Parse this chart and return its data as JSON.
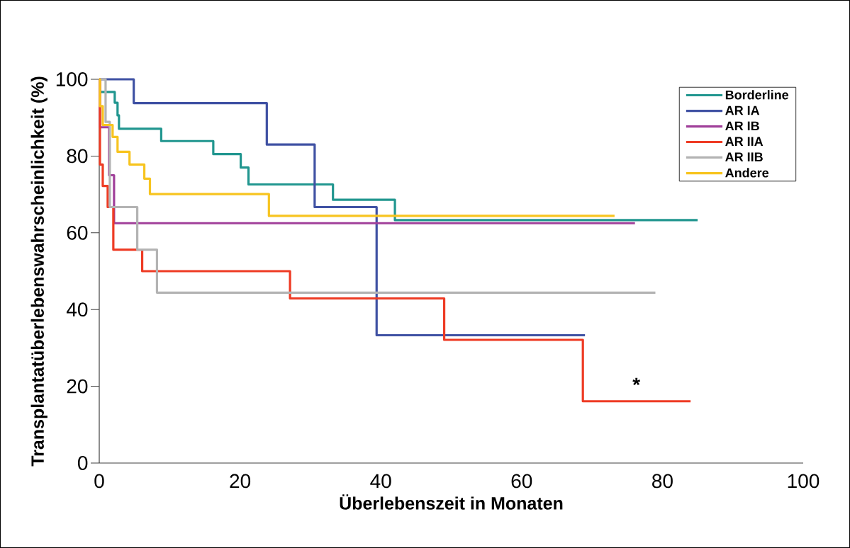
{
  "chart_data": {
    "type": "step",
    "xlabel": "Überlebenszeit in Monaten",
    "ylabel": "Transplantatüberlebenswahrscheinlichkeit (%)",
    "xlim": [
      0,
      100
    ],
    "ylim": [
      0,
      100
    ],
    "xticks": [
      0,
      20,
      40,
      60,
      80,
      100
    ],
    "yticks": [
      0,
      20,
      40,
      60,
      80,
      100
    ],
    "legend": "top right",
    "grid": false,
    "line_style": "solid",
    "marker": "none",
    "annotations": [
      "*"
    ],
    "series": [
      {
        "name": "Borderline",
        "color": "#21968f",
        "x": [
          0,
          0.1,
          2.2,
          2.6,
          2.8,
          8.8,
          16.2,
          20.1,
          21.2,
          33.2,
          42.0,
          85.0
        ],
        "values": [
          100,
          96.7,
          93.9,
          90.6,
          87.1,
          83.9,
          80.5,
          77.0,
          72.6,
          68.6,
          63.3,
          63.3
        ]
      },
      {
        "name": "AR IA",
        "color": "#3f51a3",
        "x": [
          0,
          4.9,
          23.8,
          30.6,
          39.4,
          69.0
        ],
        "values": [
          100,
          93.8,
          83.0,
          66.7,
          33.3,
          33.3
        ]
      },
      {
        "name": "AR IB",
        "color": "#a1409a",
        "x": [
          0,
          0.1,
          1.4,
          2.1,
          76.1
        ],
        "values": [
          100,
          87.5,
          75.0,
          62.5,
          62.5
        ]
      },
      {
        "name": "AR IIA",
        "color": "#ee3b24",
        "x": [
          0,
          0.1,
          0.5,
          1.2,
          2.0,
          6.1,
          27.1,
          49.0,
          68.7,
          84.0
        ],
        "values": [
          100,
          77.8,
          72.2,
          66.7,
          55.6,
          50.0,
          42.9,
          32.1,
          16.1,
          16.1
        ]
      },
      {
        "name": "AR IIB",
        "color": "#b3b3b3",
        "x": [
          0,
          0.9,
          1.5,
          5.4,
          8.2,
          79.0
        ],
        "values": [
          100,
          88.9,
          66.7,
          55.6,
          44.4,
          44.4
        ]
      },
      {
        "name": "Andere",
        "color": "#f7c41f",
        "x": [
          0,
          0.1,
          0.5,
          1.9,
          2.6,
          4.3,
          6.4,
          7.2,
          24.1,
          73.2
        ],
        "values": [
          100,
          93.0,
          88.1,
          85.0,
          81.1,
          77.8,
          74.1,
          70.1,
          64.4,
          64.4
        ]
      }
    ]
  }
}
